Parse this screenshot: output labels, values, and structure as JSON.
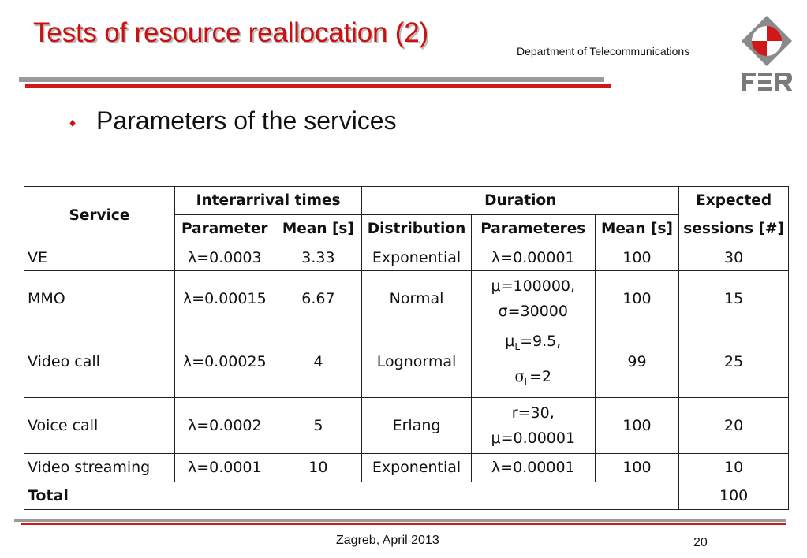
{
  "slide": {
    "title": "Tests of resource reallocation (2)",
    "department": "Department of Telecommunications",
    "bullet": "Parameters of the services",
    "logo_text": "FER",
    "colors": {
      "accent": "#cc1010",
      "rule_gray": "#9a9a9a",
      "rule_red": "#d01818"
    }
  },
  "table": {
    "headers": {
      "service": "Service",
      "interarrival": "Interarrival times",
      "duration": "Duration",
      "expected": "Expected sessions [#]",
      "parameter": "Parameter",
      "mean_s": "Mean [s]",
      "distribution": "Distribution",
      "parameteres": "Parameteres",
      "mean_s2": "Mean [s]"
    },
    "rows": [
      {
        "service": "VE",
        "param": "λ=0.0003",
        "mean": "3.33",
        "dist": "Exponential",
        "dparam1": "λ=0.00001",
        "dparam2": "",
        "dmean": "100",
        "sessions": "30"
      },
      {
        "service": "MMO",
        "param": "λ=0.00015",
        "mean": "6.67",
        "dist": "Normal",
        "dparam1": "μ=100000,",
        "dparam2": "σ=30000",
        "dmean": "100",
        "sessions": "15"
      },
      {
        "service": "Video call",
        "param": "λ=0.00025",
        "mean": "4",
        "dist": "Lognormal",
        "mu_sym": "μ",
        "mu_sub": "L",
        "mu_val": "=9.5,",
        "sigma_sym": "σ",
        "sigma_sub": "L",
        "sigma_val": "=2",
        "dmean": "99",
        "sessions": "25"
      },
      {
        "service": "Voice call",
        "param": "λ=0.0002",
        "mean": "5",
        "dist": "Erlang",
        "dparam1": "r=30,",
        "dparam2": "μ=0.00001",
        "dmean": "100",
        "sessions": "20"
      },
      {
        "service": "Video streaming",
        "param": "λ=0.0001",
        "mean": "10",
        "dist": "Exponential",
        "dparam1": "λ=0.00001",
        "dparam2": "",
        "dmean": "100",
        "sessions": "10"
      }
    ],
    "total": {
      "label": "Total",
      "value": "100"
    }
  },
  "footer": {
    "location_date": "Zagreb, April 2013",
    "page_number": "20"
  }
}
